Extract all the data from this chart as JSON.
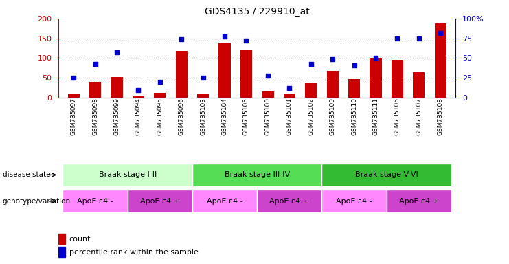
{
  "title": "GDS4135 / 229910_at",
  "samples": [
    "GSM735097",
    "GSM735098",
    "GSM735099",
    "GSM735094",
    "GSM735095",
    "GSM735096",
    "GSM735103",
    "GSM735104",
    "GSM735105",
    "GSM735100",
    "GSM735101",
    "GSM735102",
    "GSM735109",
    "GSM735110",
    "GSM735111",
    "GSM735106",
    "GSM735107",
    "GSM735108"
  ],
  "counts": [
    10,
    40,
    52,
    3,
    13,
    118,
    10,
    137,
    122,
    15,
    10,
    38,
    68,
    47,
    100,
    95,
    65,
    188
  ],
  "percentiles": [
    25,
    43,
    57,
    10,
    20,
    74,
    25,
    77,
    72,
    28,
    12,
    43,
    49,
    41,
    50,
    75,
    75,
    82
  ],
  "bar_color": "#cc0000",
  "dot_color": "#0000cc",
  "left_ylim": [
    0,
    200
  ],
  "left_yticks": [
    0,
    50,
    100,
    150,
    200
  ],
  "right_ylim": [
    0,
    100
  ],
  "right_yticks": [
    0,
    25,
    50,
    75,
    100
  ],
  "right_yticklabels": [
    "0",
    "25",
    "50",
    "75",
    "100%"
  ],
  "hlines": [
    50,
    100,
    150
  ],
  "disease_stages": [
    {
      "label": "Braak stage I-II",
      "start": 0,
      "end": 6,
      "color": "#ccffcc"
    },
    {
      "label": "Braak stage III-IV",
      "start": 6,
      "end": 12,
      "color": "#55dd55"
    },
    {
      "label": "Braak stage V-VI",
      "start": 12,
      "end": 18,
      "color": "#33bb33"
    }
  ],
  "genotype_groups": [
    {
      "label": "ApoE ε4 -",
      "start": 0,
      "end": 3,
      "color": "#ff88ff"
    },
    {
      "label": "ApoE ε4 +",
      "start": 3,
      "end": 6,
      "color": "#cc44cc"
    },
    {
      "label": "ApoE ε4 -",
      "start": 6,
      "end": 9,
      "color": "#ff88ff"
    },
    {
      "label": "ApoE ε4 +",
      "start": 9,
      "end": 12,
      "color": "#cc44cc"
    },
    {
      "label": "ApoE ε4 -",
      "start": 12,
      "end": 15,
      "color": "#ff88ff"
    },
    {
      "label": "ApoE ε4 +",
      "start": 15,
      "end": 18,
      "color": "#cc44cc"
    }
  ],
  "left_ylabel_color": "#cc0000",
  "right_ylabel_color": "#0000cc",
  "bg_color": "#ffffff",
  "label_disease_state": "disease state",
  "label_genotype": "genotype/variation"
}
